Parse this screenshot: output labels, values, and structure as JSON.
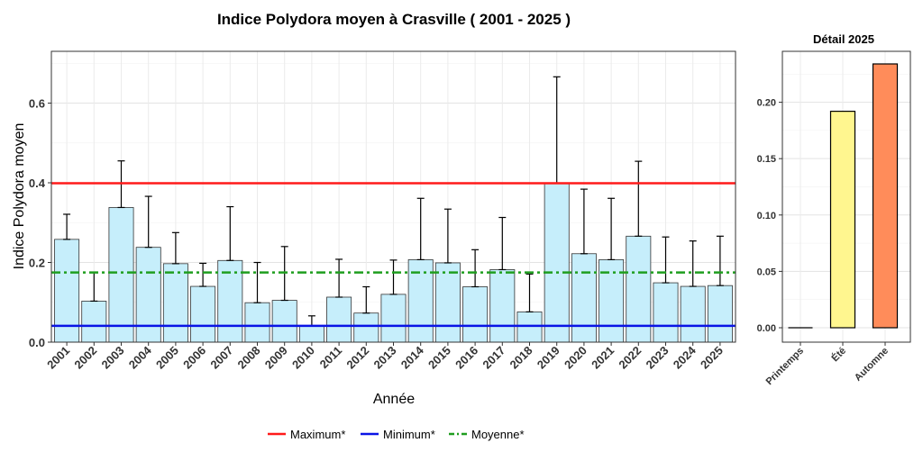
{
  "chart_data": [
    {
      "type": "bar",
      "title": "Indice Polydora moyen à Crasville ( 2001 - 2025 )",
      "xlabel": "Année",
      "ylabel": "Indice Polydora moyen",
      "ylim": [
        0,
        0.73
      ],
      "yticks": [
        "0.0",
        "0.2",
        "0.4",
        "0.6"
      ],
      "grid": true,
      "bar_color": "#c6eefb",
      "categories": [
        "2001",
        "2002",
        "2003",
        "2004",
        "2005",
        "2006",
        "2007",
        "2008",
        "2009",
        "2010",
        "2011",
        "2012",
        "2013",
        "2014",
        "2015",
        "2016",
        "2017",
        "2018",
        "2019",
        "2020",
        "2021",
        "2022",
        "2023",
        "2024",
        "2025"
      ],
      "values": [
        0.258,
        0.103,
        0.338,
        0.238,
        0.197,
        0.14,
        0.205,
        0.099,
        0.105,
        0.041,
        0.113,
        0.073,
        0.12,
        0.207,
        0.199,
        0.139,
        0.182,
        0.076,
        0.399,
        0.222,
        0.207,
        0.266,
        0.149,
        0.14,
        0.142
      ],
      "error_upper": [
        0.321,
        0.176,
        0.455,
        0.366,
        0.275,
        0.198,
        0.34,
        0.2,
        0.24,
        0.066,
        0.208,
        0.139,
        0.206,
        0.361,
        0.334,
        0.232,
        0.313,
        0.171,
        0.666,
        0.384,
        0.361,
        0.454,
        0.264,
        0.254,
        0.266
      ],
      "reference_lines": [
        {
          "name": "Maximum*",
          "value": 0.399,
          "color": "#ff1a1a",
          "style": "solid"
        },
        {
          "name": "Minimum*",
          "value": 0.041,
          "color": "#0a14e6",
          "style": "solid"
        },
        {
          "name": "Moyenne*",
          "value": 0.175,
          "color": "#1f9e1f",
          "style": "dashdot"
        }
      ],
      "legend_position": "bottom"
    },
    {
      "type": "bar",
      "title": "Détail 2025",
      "ylim": [
        0,
        0.243
      ],
      "yticks": [
        "0.00",
        "0.05",
        "0.10",
        "0.15",
        "0.20"
      ],
      "grid": true,
      "categories": [
        "Printemps",
        "Été",
        "Automne"
      ],
      "values": [
        0.0,
        0.192,
        0.234
      ],
      "colors": [
        "#000000",
        "#fff68f",
        "#ff8c5a"
      ]
    }
  ]
}
